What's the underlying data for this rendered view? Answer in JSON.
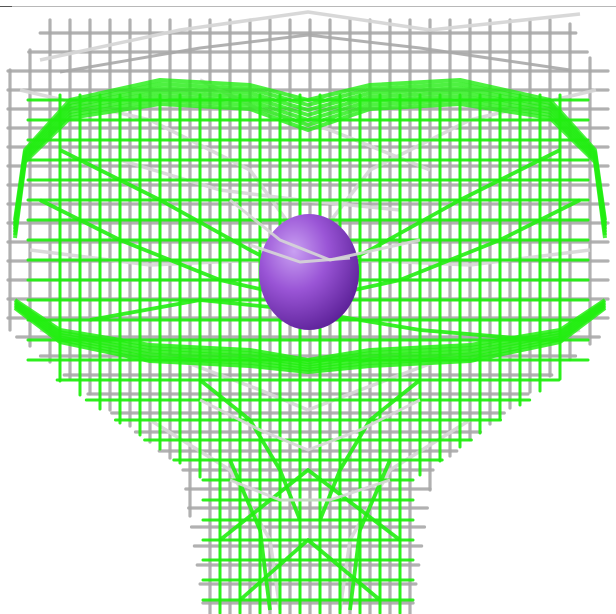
{
  "scene": {
    "kind": "3d-wireframe-render",
    "background_color": "#ffffff",
    "grey_mesh_color": "#a9a9a9",
    "grey_mesh_highlight": "#d6d6d6",
    "green_mesh_color": "#22ee11",
    "sphere_color": "#9a55d6",
    "sphere_shadow": "#6a2aa6",
    "objects": [
      {
        "name": "grey-wireframe-mesh"
      },
      {
        "name": "green-wireframe-mesh"
      },
      {
        "name": "purple-sphere"
      }
    ]
  }
}
